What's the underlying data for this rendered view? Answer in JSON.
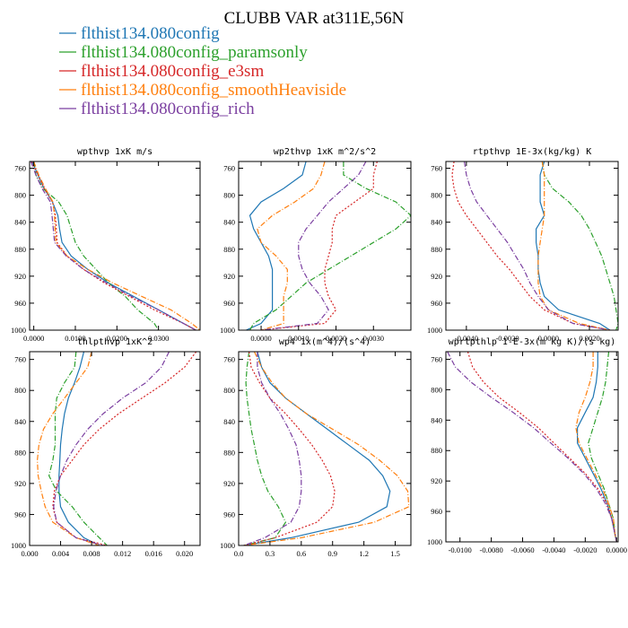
{
  "title": "CLUBB VAR at311E,56N",
  "series": [
    {
      "name": "flthist134.080config",
      "color": "#1f77b4",
      "dash": ""
    },
    {
      "name": "flthist134.080config_paramsonly",
      "color": "#2ca02c",
      "dash": "6,2,1,2"
    },
    {
      "name": "flthist134.080config_e3sm",
      "color": "#d62728",
      "dash": "2,2"
    },
    {
      "name": "flthist134.080config_smoothHeaviside",
      "color": "#ff7f0e",
      "dash": "6,2,1,2"
    },
    {
      "name": "flthist134.080config_rich",
      "color": "#7b3fa0",
      "dash": "6,2,1,2"
    }
  ],
  "chart_data": [
    {
      "type": "line",
      "title": "wpthvp  1xK m/s",
      "xlim": [
        -0.001,
        0.04
      ],
      "ylim": [
        1000,
        750
      ],
      "xticks": [
        "0.0000",
        "0.0100",
        "0.0200",
        "0.0300"
      ],
      "yticks": [
        "760",
        "800",
        "840",
        "880",
        "920",
        "960",
        "1000"
      ],
      "y": [
        750,
        770,
        790,
        810,
        830,
        850,
        870,
        890,
        910,
        930,
        950,
        970,
        990,
        1000
      ],
      "series": [
        {
          "name": "flthist134.080config",
          "values": [
            -0.0004,
            0.001,
            0.0025,
            0.0045,
            0.0058,
            0.0062,
            0.0068,
            0.009,
            0.013,
            0.018,
            0.024,
            0.03,
            0.036,
            0.039
          ]
        },
        {
          "name": "flthist134.080config_paramsonly",
          "values": [
            0.0,
            0.0005,
            0.0022,
            0.006,
            0.008,
            0.009,
            0.01,
            0.012,
            0.015,
            0.018,
            0.022,
            0.025,
            0.029,
            0.03
          ]
        },
        {
          "name": "flthist134.080config_e3sm",
          "values": [
            -0.0005,
            0.001,
            0.0025,
            0.0045,
            0.0052,
            0.0054,
            0.0056,
            0.008,
            0.012,
            0.017,
            0.023,
            0.029,
            0.036,
            0.039
          ]
        },
        {
          "name": "flthist134.080config_smoothHeaviside",
          "values": [
            0.0,
            0.0012,
            0.0028,
            0.0046,
            0.005,
            0.0051,
            0.0053,
            0.008,
            0.013,
            0.019,
            0.026,
            0.033,
            0.038,
            0.04
          ]
        },
        {
          "name": "flthist134.080config_rich",
          "values": [
            -0.0007,
            0.0005,
            0.002,
            0.004,
            0.0044,
            0.0047,
            0.005,
            0.0078,
            0.012,
            0.0175,
            0.0235,
            0.03,
            0.036,
            0.039
          ]
        }
      ]
    },
    {
      "type": "line",
      "title": "wp2thvp  1xK m^2/s^2",
      "xlim": [
        -0.0006,
        0.004
      ],
      "ylim": [
        1000,
        750
      ],
      "xticks": [
        "0.0000",
        "0.0010",
        "0.0020",
        "0.0030"
      ],
      "yticks": [
        "760",
        "800",
        "840",
        "880",
        "920",
        "960",
        "1000"
      ],
      "y": [
        750,
        770,
        790,
        810,
        830,
        850,
        870,
        890,
        910,
        930,
        950,
        970,
        990,
        1000
      ],
      "series": [
        {
          "name": "flthist134.080config",
          "values": [
            0.0012,
            0.0011,
            0.0006,
            0.0,
            -0.0003,
            -0.0002,
            0.0,
            0.0002,
            0.0003,
            0.0003,
            0.0003,
            0.0003,
            0.0,
            -0.0004
          ]
        },
        {
          "name": "flthist134.080config_paramsonly",
          "values": [
            0.0022,
            0.0022,
            0.0028,
            0.0036,
            0.004,
            0.0036,
            0.003,
            0.0024,
            0.0018,
            0.0012,
            0.0008,
            0.0004,
            -0.0002,
            -0.0003
          ]
        },
        {
          "name": "flthist134.080config_e3sm",
          "values": [
            0.0031,
            0.003,
            0.003,
            0.0025,
            0.002,
            0.0019,
            0.0019,
            0.0018,
            0.0017,
            0.0017,
            0.0018,
            0.002,
            0.0017,
            0.0
          ]
        },
        {
          "name": "flthist134.080config_smoothHeaviside",
          "values": [
            0.0017,
            0.0016,
            0.0014,
            0.0009,
            0.0003,
            -0.0001,
            0.0,
            0.0004,
            0.0007,
            0.0007,
            0.0006,
            0.0006,
            0.0006,
            0.0
          ]
        },
        {
          "name": "flthist134.080config_rich",
          "values": [
            0.0028,
            0.0026,
            0.0022,
            0.0018,
            0.0015,
            0.0012,
            0.001,
            0.001,
            0.0011,
            0.0013,
            0.0016,
            0.0018,
            0.0015,
            0.0
          ]
        }
      ]
    },
    {
      "type": "line",
      "title": "rtpthvp  1E-3x(kg/kg) K",
      "xlim": [
        -0.005,
        0.0034
      ],
      "ylim": [
        1000,
        750
      ],
      "xticks": [
        "-0.0040",
        "-0.0020",
        "0.0000",
        "0.0020"
      ],
      "yticks": [
        "760",
        "800",
        "840",
        "880",
        "920",
        "960",
        "1000"
      ],
      "y": [
        750,
        770,
        790,
        810,
        830,
        850,
        870,
        890,
        910,
        930,
        950,
        970,
        990,
        1000
      ],
      "series": [
        {
          "name": "flthist134.080config",
          "values": [
            -0.0002,
            -0.0004,
            -0.0004,
            -0.0004,
            -0.0002,
            -0.0006,
            -0.0006,
            -0.0005,
            -0.0005,
            -0.0004,
            -0.0002,
            0.0005,
            0.0025,
            0.003
          ]
        },
        {
          "name": "flthist134.080config_paramsonly",
          "values": [
            -0.0003,
            -0.0002,
            0.0002,
            0.001,
            0.0016,
            0.002,
            0.0023,
            0.0026,
            0.0028,
            0.003,
            0.0032,
            0.0033,
            0.0034,
            0.0033
          ]
        },
        {
          "name": "flthist134.080config_e3sm",
          "values": [
            -0.0046,
            -0.0047,
            -0.0046,
            -0.0044,
            -0.004,
            -0.0035,
            -0.003,
            -0.0025,
            -0.0019,
            -0.0014,
            -0.0009,
            -0.0002,
            0.0012,
            0.003
          ]
        },
        {
          "name": "flthist134.080config_smoothHeaviside",
          "values": [
            -0.0003,
            -0.0002,
            -0.0002,
            -0.0002,
            -0.0002,
            -0.0003,
            -0.0004,
            -0.0005,
            -0.0005,
            -0.0005,
            -0.0004,
            0.0,
            0.0015,
            0.003
          ]
        },
        {
          "name": "flthist134.080config_rich",
          "values": [
            -0.0041,
            -0.004,
            -0.0038,
            -0.0035,
            -0.003,
            -0.0025,
            -0.002,
            -0.0016,
            -0.0012,
            -0.0009,
            -0.0005,
            0.0,
            0.0012,
            0.003
          ]
        }
      ]
    },
    {
      "type": "line",
      "title": "thlpthvp  1xK^2",
      "xlim": [
        0.0,
        0.022
      ],
      "ylim": [
        1000,
        750
      ],
      "xticks": [
        "0.000",
        "0.004",
        "0.008",
        "0.012",
        "0.016",
        "0.020"
      ],
      "yticks": [
        "760",
        "800",
        "840",
        "880",
        "920",
        "960",
        "1000"
      ],
      "y": [
        750,
        770,
        790,
        810,
        830,
        850,
        870,
        890,
        910,
        930,
        950,
        970,
        990,
        1000
      ],
      "series": [
        {
          "name": "flthist134.080config",
          "values": [
            0.007,
            0.0065,
            0.0058,
            0.005,
            0.0045,
            0.0042,
            0.004,
            0.0039,
            0.0038,
            0.0038,
            0.004,
            0.005,
            0.007,
            0.009
          ]
        },
        {
          "name": "flthist134.080config_paramsonly",
          "values": [
            0.006,
            0.0058,
            0.0045,
            0.0035,
            0.0033,
            0.0033,
            0.0033,
            0.003,
            0.0025,
            0.0035,
            0.0055,
            0.007,
            0.009,
            0.01
          ]
        },
        {
          "name": "flthist134.080config_e3sm",
          "values": [
            0.0215,
            0.02,
            0.0175,
            0.0145,
            0.0115,
            0.009,
            0.007,
            0.0055,
            0.004,
            0.0032,
            0.003,
            0.0035,
            0.006,
            0.01
          ]
        },
        {
          "name": "flthist134.080config_smoothHeaviside",
          "values": [
            0.008,
            0.0075,
            0.006,
            0.0045,
            0.003,
            0.0018,
            0.0012,
            0.001,
            0.0011,
            0.0015,
            0.002,
            0.003,
            0.006,
            0.009
          ]
        },
        {
          "name": "flthist134.080config_rich",
          "values": [
            0.018,
            0.017,
            0.015,
            0.012,
            0.0095,
            0.0075,
            0.006,
            0.0048,
            0.004,
            0.0034,
            0.0031,
            0.0035,
            0.006,
            0.0095
          ]
        }
      ]
    },
    {
      "type": "line",
      "title": "wp4  1x(m^4)/(s^4)",
      "xlim": [
        0.0,
        1.65
      ],
      "ylim": [
        1000,
        750
      ],
      "xticks": [
        "0.0",
        "0.3",
        "0.6",
        "0.9",
        "1.2",
        "1.5"
      ],
      "yticks": [
        "760",
        "800",
        "840",
        "880",
        "920",
        "960",
        "1000"
      ],
      "y": [
        750,
        770,
        790,
        810,
        830,
        850,
        870,
        890,
        910,
        930,
        950,
        970,
        990,
        1000
      ],
      "series": [
        {
          "name": "flthist134.080config",
          "values": [
            0.18,
            0.22,
            0.3,
            0.45,
            0.65,
            0.85,
            1.05,
            1.25,
            1.38,
            1.45,
            1.42,
            1.15,
            0.5,
            0.05
          ]
        },
        {
          "name": "flthist134.080config_paramsonly",
          "values": [
            0.1,
            0.08,
            0.07,
            0.08,
            0.1,
            0.12,
            0.15,
            0.18,
            0.22,
            0.28,
            0.38,
            0.45,
            0.35,
            0.05
          ]
        },
        {
          "name": "flthist134.080config_e3sm",
          "values": [
            0.1,
            0.12,
            0.2,
            0.3,
            0.45,
            0.58,
            0.7,
            0.8,
            0.88,
            0.92,
            0.9,
            0.75,
            0.35,
            0.05
          ]
        },
        {
          "name": "flthist134.080config_smoothHeaviside",
          "values": [
            0.15,
            0.22,
            0.32,
            0.45,
            0.65,
            0.9,
            1.15,
            1.35,
            1.52,
            1.62,
            1.63,
            1.3,
            0.6,
            0.05
          ]
        },
        {
          "name": "flthist134.080config_rich",
          "values": [
            0.18,
            0.18,
            0.22,
            0.3,
            0.4,
            0.48,
            0.55,
            0.58,
            0.6,
            0.6,
            0.58,
            0.5,
            0.25,
            0.05
          ]
        }
      ]
    },
    {
      "type": "line",
      "title": "wprtpthlp  1-E-3x(m kg K)/(s kg)",
      "xlim": [
        -0.0109,
        0.0001
      ],
      "ylim": [
        1000,
        750
      ],
      "xticks": [
        "-0.0100",
        "-0.0080",
        "-0.0060",
        "-0.0040",
        "-0.0020",
        "0.0000"
      ],
      "yticks": [
        "760",
        "800",
        "840",
        "880",
        "920",
        "960",
        "1000"
      ],
      "y": [
        750,
        770,
        790,
        810,
        830,
        850,
        870,
        890,
        910,
        930,
        950,
        970,
        990,
        1000
      ],
      "series": [
        {
          "name": "flthist134.080config",
          "values": [
            -0.0012,
            -0.0012,
            -0.0013,
            -0.0015,
            -0.002,
            -0.0025,
            -0.0025,
            -0.002,
            -0.0015,
            -0.001,
            -0.0006,
            -0.0003,
            -0.0001,
            0.0
          ]
        },
        {
          "name": "flthist134.080config_paramsonly",
          "values": [
            -0.0005,
            -0.0006,
            -0.0007,
            -0.0009,
            -0.0012,
            -0.0015,
            -0.0018,
            -0.0016,
            -0.0012,
            -0.0008,
            -0.0005,
            -0.0002,
            -0.0001,
            0.0
          ]
        },
        {
          "name": "flthist134.080config_e3sm",
          "values": [
            -0.0095,
            -0.0092,
            -0.0085,
            -0.0075,
            -0.0062,
            -0.005,
            -0.004,
            -0.003,
            -0.002,
            -0.0012,
            -0.0006,
            -0.0003,
            -0.0001,
            0.0
          ]
        },
        {
          "name": "flthist134.080config_smoothHeaviside",
          "values": [
            -0.0015,
            -0.0015,
            -0.0017,
            -0.002,
            -0.0024,
            -0.0026,
            -0.0024,
            -0.0019,
            -0.0014,
            -0.0009,
            -0.0005,
            -0.0002,
            -0.0001,
            0.0
          ]
        },
        {
          "name": "flthist134.080config_rich",
          "values": [
            -0.0108,
            -0.0103,
            -0.0093,
            -0.008,
            -0.0066,
            -0.0053,
            -0.0042,
            -0.0031,
            -0.0021,
            -0.0013,
            -0.0007,
            -0.0003,
            -0.0001,
            0.0
          ]
        }
      ]
    }
  ]
}
